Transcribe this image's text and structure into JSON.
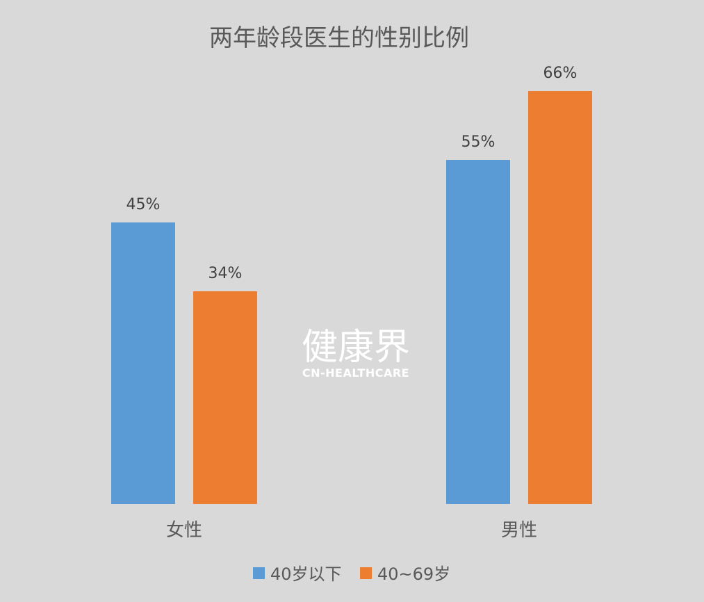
{
  "watermark": {
    "text_cn": "健康界",
    "text_en": "CN-HEALTHCARE"
  },
  "chart_data": {
    "type": "bar",
    "title": "两年龄段医生的性别比例",
    "categories": [
      "女性",
      "男性"
    ],
    "series": [
      {
        "name": "40岁以下",
        "values": [
          45,
          55
        ],
        "labels": [
          "45%",
          "55%"
        ],
        "color": "#5b9bd5"
      },
      {
        "name": "40~69岁",
        "values": [
          34,
          66
        ],
        "labels": [
          "34%",
          "66%"
        ],
        "color": "#ed7d31"
      }
    ],
    "ylim": [
      0,
      75
    ],
    "grid": false,
    "legend_position": "bottom",
    "background_color": "#d9d9d9"
  }
}
